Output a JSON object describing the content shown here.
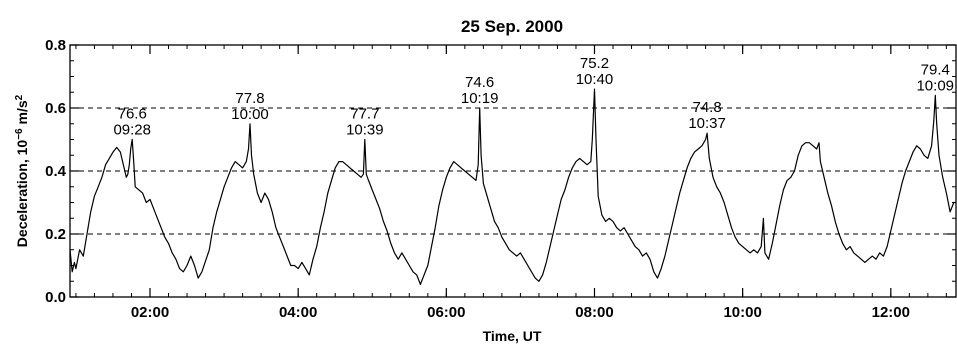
{
  "chart_data": {
    "type": "line",
    "title": "25 Sep. 2000",
    "xlabel": "Time, UT",
    "ylabel": "Deceleration, 10",
    "ylabel_exponent": "−6",
    "ylabel_unit": " m/s",
    "ylabel_unit_exponent": "2",
    "x_unit": "hours UT",
    "xlim": [
      0.92,
      12.88
    ],
    "ylim": [
      0.0,
      0.8
    ],
    "x_ticks": [
      2,
      4,
      6,
      8,
      10,
      12
    ],
    "x_tick_labels": [
      "02:00",
      "04:00",
      "06:00",
      "08:00",
      "10:00",
      "12:00"
    ],
    "y_ticks": [
      0.0,
      0.2,
      0.4,
      0.6,
      0.8
    ],
    "y_tick_labels": [
      "0.0",
      "0.2",
      "0.4",
      "0.6",
      "0.8"
    ],
    "gridlines_y": [
      0.2,
      0.4,
      0.6
    ],
    "grid_style": "dashed horizontal",
    "series": [
      {
        "points": [
          [
            0.92,
            0.15
          ],
          [
            0.95,
            0.08
          ],
          [
            0.98,
            0.11
          ],
          [
            1.0,
            0.09
          ],
          [
            1.05,
            0.15
          ],
          [
            1.1,
            0.13
          ],
          [
            1.15,
            0.2
          ],
          [
            1.2,
            0.27
          ],
          [
            1.25,
            0.32
          ],
          [
            1.3,
            0.35
          ],
          [
            1.35,
            0.38
          ],
          [
            1.4,
            0.42
          ],
          [
            1.45,
            0.44
          ],
          [
            1.5,
            0.46
          ],
          [
            1.55,
            0.475
          ],
          [
            1.6,
            0.46
          ],
          [
            1.63,
            0.43
          ],
          [
            1.65,
            0.41
          ],
          [
            1.68,
            0.38
          ],
          [
            1.7,
            0.39
          ],
          [
            1.72,
            0.42
          ],
          [
            1.74,
            0.47
          ],
          [
            1.76,
            0.5
          ],
          [
            1.78,
            0.43
          ],
          [
            1.8,
            0.35
          ],
          [
            1.85,
            0.34
          ],
          [
            1.9,
            0.33
          ],
          [
            1.95,
            0.3
          ],
          [
            2.0,
            0.31
          ],
          [
            2.05,
            0.28
          ],
          [
            2.1,
            0.25
          ],
          [
            2.15,
            0.22
          ],
          [
            2.2,
            0.19
          ],
          [
            2.25,
            0.17
          ],
          [
            2.3,
            0.14
          ],
          [
            2.35,
            0.12
          ],
          [
            2.4,
            0.09
          ],
          [
            2.45,
            0.08
          ],
          [
            2.5,
            0.1
          ],
          [
            2.55,
            0.13
          ],
          [
            2.6,
            0.1
          ],
          [
            2.65,
            0.06
          ],
          [
            2.7,
            0.08
          ],
          [
            2.8,
            0.15
          ],
          [
            2.85,
            0.22
          ],
          [
            2.9,
            0.27
          ],
          [
            2.95,
            0.31
          ],
          [
            3.0,
            0.35
          ],
          [
            3.05,
            0.38
          ],
          [
            3.1,
            0.41
          ],
          [
            3.15,
            0.43
          ],
          [
            3.2,
            0.42
          ],
          [
            3.25,
            0.41
          ],
          [
            3.3,
            0.43
          ],
          [
            3.33,
            0.47
          ],
          [
            3.35,
            0.55
          ],
          [
            3.37,
            0.45
          ],
          [
            3.4,
            0.39
          ],
          [
            3.45,
            0.33
          ],
          [
            3.5,
            0.3
          ],
          [
            3.55,
            0.33
          ],
          [
            3.6,
            0.31
          ],
          [
            3.65,
            0.27
          ],
          [
            3.7,
            0.22
          ],
          [
            3.75,
            0.19
          ],
          [
            3.8,
            0.16
          ],
          [
            3.85,
            0.13
          ],
          [
            3.9,
            0.1
          ],
          [
            3.95,
            0.1
          ],
          [
            4.0,
            0.09
          ],
          [
            4.05,
            0.11
          ],
          [
            4.1,
            0.09
          ],
          [
            4.15,
            0.07
          ],
          [
            4.2,
            0.12
          ],
          [
            4.25,
            0.16
          ],
          [
            4.3,
            0.22
          ],
          [
            4.35,
            0.27
          ],
          [
            4.4,
            0.33
          ],
          [
            4.45,
            0.37
          ],
          [
            4.5,
            0.41
          ],
          [
            4.55,
            0.43
          ],
          [
            4.6,
            0.43
          ],
          [
            4.65,
            0.42
          ],
          [
            4.7,
            0.41
          ],
          [
            4.75,
            0.4
          ],
          [
            4.8,
            0.39
          ],
          [
            4.85,
            0.38
          ],
          [
            4.88,
            0.39
          ],
          [
            4.9,
            0.5
          ],
          [
            4.92,
            0.39
          ],
          [
            4.95,
            0.37
          ],
          [
            5.0,
            0.34
          ],
          [
            5.05,
            0.31
          ],
          [
            5.1,
            0.28
          ],
          [
            5.15,
            0.24
          ],
          [
            5.2,
            0.21
          ],
          [
            5.25,
            0.17
          ],
          [
            5.3,
            0.14
          ],
          [
            5.35,
            0.12
          ],
          [
            5.4,
            0.14
          ],
          [
            5.45,
            0.12
          ],
          [
            5.5,
            0.1
          ],
          [
            5.55,
            0.08
          ],
          [
            5.6,
            0.07
          ],
          [
            5.65,
            0.04
          ],
          [
            5.7,
            0.07
          ],
          [
            5.75,
            0.1
          ],
          [
            5.8,
            0.16
          ],
          [
            5.85,
            0.22
          ],
          [
            5.9,
            0.29
          ],
          [
            5.95,
            0.34
          ],
          [
            6.0,
            0.38
          ],
          [
            6.05,
            0.41
          ],
          [
            6.1,
            0.43
          ],
          [
            6.15,
            0.42
          ],
          [
            6.2,
            0.41
          ],
          [
            6.25,
            0.4
          ],
          [
            6.3,
            0.39
          ],
          [
            6.35,
            0.38
          ],
          [
            6.4,
            0.37
          ],
          [
            6.43,
            0.42
          ],
          [
            6.45,
            0.6
          ],
          [
            6.47,
            0.45
          ],
          [
            6.5,
            0.36
          ],
          [
            6.55,
            0.32
          ],
          [
            6.6,
            0.28
          ],
          [
            6.65,
            0.24
          ],
          [
            6.7,
            0.22
          ],
          [
            6.75,
            0.19
          ],
          [
            6.8,
            0.17
          ],
          [
            6.85,
            0.15
          ],
          [
            6.9,
            0.14
          ],
          [
            6.95,
            0.13
          ],
          [
            7.0,
            0.14
          ],
          [
            7.05,
            0.12
          ],
          [
            7.1,
            0.1
          ],
          [
            7.15,
            0.08
          ],
          [
            7.2,
            0.06
          ],
          [
            7.25,
            0.05
          ],
          [
            7.3,
            0.07
          ],
          [
            7.35,
            0.11
          ],
          [
            7.4,
            0.16
          ],
          [
            7.45,
            0.21
          ],
          [
            7.5,
            0.26
          ],
          [
            7.55,
            0.31
          ],
          [
            7.6,
            0.34
          ],
          [
            7.65,
            0.38
          ],
          [
            7.7,
            0.41
          ],
          [
            7.75,
            0.43
          ],
          [
            7.8,
            0.44
          ],
          [
            7.85,
            0.43
          ],
          [
            7.9,
            0.42
          ],
          [
            7.95,
            0.43
          ],
          [
            7.97,
            0.5
          ],
          [
            8.0,
            0.66
          ],
          [
            8.02,
            0.5
          ],
          [
            8.05,
            0.32
          ],
          [
            8.1,
            0.26
          ],
          [
            8.15,
            0.24
          ],
          [
            8.2,
            0.25
          ],
          [
            8.25,
            0.24
          ],
          [
            8.3,
            0.22
          ],
          [
            8.35,
            0.21
          ],
          [
            8.4,
            0.22
          ],
          [
            8.45,
            0.2
          ],
          [
            8.5,
            0.18
          ],
          [
            8.55,
            0.16
          ],
          [
            8.6,
            0.15
          ],
          [
            8.65,
            0.13
          ],
          [
            8.7,
            0.14
          ],
          [
            8.75,
            0.12
          ],
          [
            8.8,
            0.08
          ],
          [
            8.85,
            0.06
          ],
          [
            8.9,
            0.09
          ],
          [
            8.95,
            0.13
          ],
          [
            9.0,
            0.18
          ],
          [
            9.05,
            0.23
          ],
          [
            9.1,
            0.28
          ],
          [
            9.15,
            0.33
          ],
          [
            9.2,
            0.37
          ],
          [
            9.25,
            0.41
          ],
          [
            9.3,
            0.44
          ],
          [
            9.35,
            0.46
          ],
          [
            9.4,
            0.47
          ],
          [
            9.45,
            0.48
          ],
          [
            9.5,
            0.5
          ],
          [
            9.52,
            0.52
          ],
          [
            9.55,
            0.44
          ],
          [
            9.6,
            0.38
          ],
          [
            9.65,
            0.35
          ],
          [
            9.7,
            0.33
          ],
          [
            9.75,
            0.3
          ],
          [
            9.8,
            0.26
          ],
          [
            9.85,
            0.22
          ],
          [
            9.9,
            0.19
          ],
          [
            9.95,
            0.17
          ],
          [
            10.0,
            0.16
          ],
          [
            10.05,
            0.15
          ],
          [
            10.1,
            0.14
          ],
          [
            10.15,
            0.15
          ],
          [
            10.2,
            0.14
          ],
          [
            10.25,
            0.16
          ],
          [
            10.28,
            0.25
          ],
          [
            10.3,
            0.14
          ],
          [
            10.35,
            0.12
          ],
          [
            10.4,
            0.17
          ],
          [
            10.45,
            0.23
          ],
          [
            10.5,
            0.29
          ],
          [
            10.55,
            0.34
          ],
          [
            10.6,
            0.37
          ],
          [
            10.65,
            0.38
          ],
          [
            10.7,
            0.4
          ],
          [
            10.75,
            0.45
          ],
          [
            10.8,
            0.48
          ],
          [
            10.85,
            0.49
          ],
          [
            10.9,
            0.49
          ],
          [
            10.95,
            0.48
          ],
          [
            11.0,
            0.47
          ],
          [
            11.03,
            0.49
          ],
          [
            11.05,
            0.43
          ],
          [
            11.1,
            0.38
          ],
          [
            11.15,
            0.33
          ],
          [
            11.2,
            0.29
          ],
          [
            11.25,
            0.24
          ],
          [
            11.3,
            0.2
          ],
          [
            11.35,
            0.17
          ],
          [
            11.4,
            0.15
          ],
          [
            11.45,
            0.16
          ],
          [
            11.5,
            0.14
          ],
          [
            11.55,
            0.13
          ],
          [
            11.6,
            0.12
          ],
          [
            11.65,
            0.11
          ],
          [
            11.7,
            0.12
          ],
          [
            11.75,
            0.13
          ],
          [
            11.8,
            0.12
          ],
          [
            11.85,
            0.14
          ],
          [
            11.9,
            0.13
          ],
          [
            11.95,
            0.16
          ],
          [
            12.0,
            0.21
          ],
          [
            12.05,
            0.26
          ],
          [
            12.1,
            0.31
          ],
          [
            12.15,
            0.36
          ],
          [
            12.2,
            0.4
          ],
          [
            12.25,
            0.43
          ],
          [
            12.3,
            0.46
          ],
          [
            12.35,
            0.48
          ],
          [
            12.4,
            0.47
          ],
          [
            12.45,
            0.45
          ],
          [
            12.5,
            0.44
          ],
          [
            12.55,
            0.48
          ],
          [
            12.58,
            0.56
          ],
          [
            12.6,
            0.64
          ],
          [
            12.62,
            0.55
          ],
          [
            12.65,
            0.45
          ],
          [
            12.7,
            0.38
          ],
          [
            12.75,
            0.33
          ],
          [
            12.8,
            0.27
          ],
          [
            12.85,
            0.3
          ],
          [
            12.88,
            0.3
          ]
        ]
      }
    ],
    "annotations": [
      {
        "value": "76.6",
        "time": "09:28",
        "x": 1.76,
        "y": 0.5
      },
      {
        "value": "77.8",
        "time": "10:00",
        "x": 3.35,
        "y": 0.55
      },
      {
        "value": "77.7",
        "time": "10:39",
        "x": 4.9,
        "y": 0.5
      },
      {
        "value": "74.6",
        "time": "10:19",
        "x": 6.45,
        "y": 0.6
      },
      {
        "value": "75.2",
        "time": "10:40",
        "x": 8.0,
        "y": 0.66
      },
      {
        "value": "74.8",
        "time": "10:37",
        "x": 9.52,
        "y": 0.52
      },
      {
        "value": "79.4",
        "time": "10:09",
        "x": 12.6,
        "y": 0.64
      }
    ]
  }
}
